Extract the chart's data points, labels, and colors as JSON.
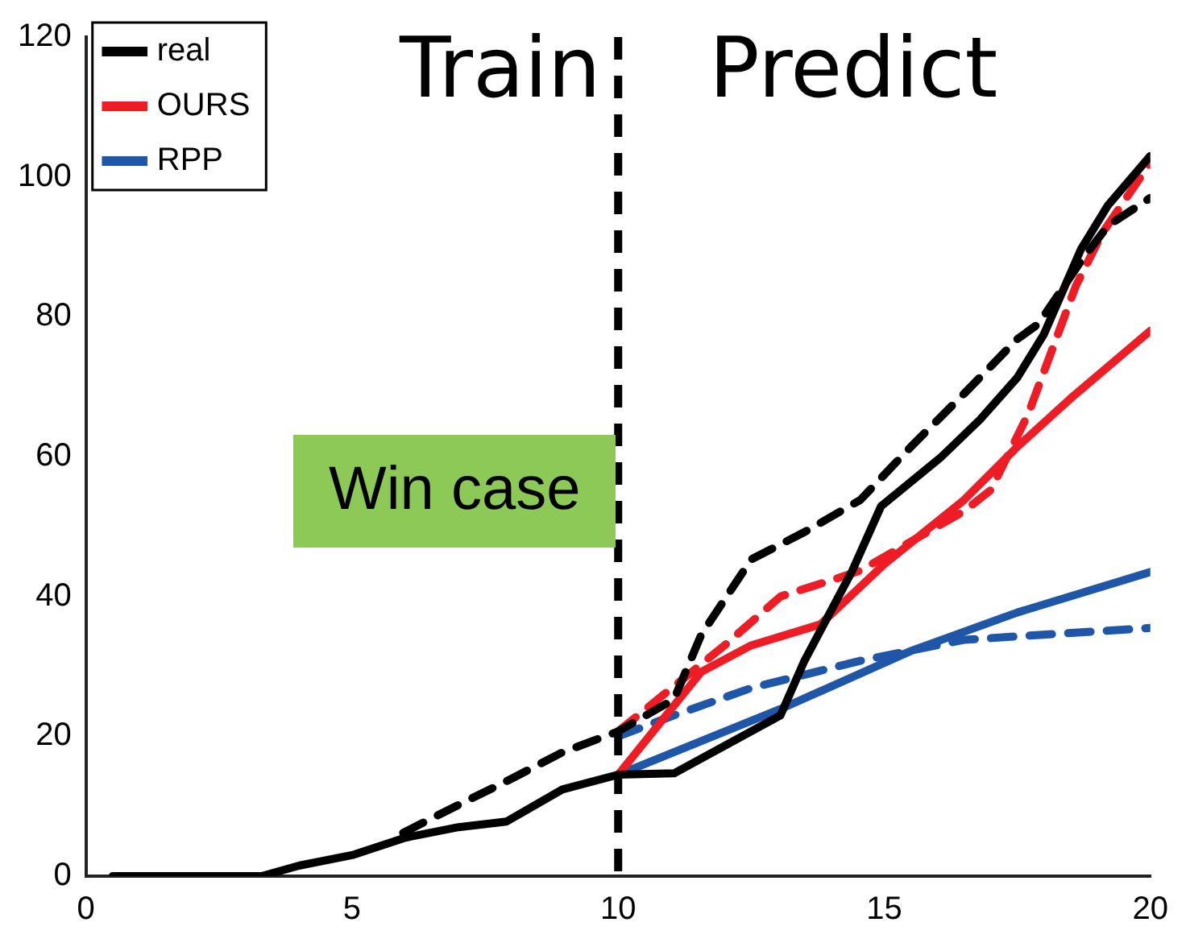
{
  "chart_data": {
    "type": "line",
    "xlim": [
      0,
      20
    ],
    "xticks": [
      0,
      5,
      10,
      15,
      20
    ],
    "ylim": [
      0,
      120
    ],
    "yticks": [
      0,
      20,
      40,
      60,
      80,
      100,
      120
    ],
    "grid": false,
    "legend": "top left",
    "marker": "none",
    "annotations": [
      "Train",
      "Predict",
      "Win case"
    ],
    "ref_lines": [
      {
        "axis": "x",
        "value": 10,
        "color": "#000000",
        "line_style": "dashed"
      }
    ],
    "series": [
      {
        "name": "real",
        "color": "#000000",
        "line_style": "solid",
        "x": [
          0.5,
          3.3,
          4,
          5,
          6,
          7,
          7.9,
          8.95,
          10,
          11.05,
          13.05,
          13.5,
          14.4,
          14.94,
          16.05,
          16.8,
          17.5,
          18,
          18.7,
          19.2,
          20
        ],
        "values": [
          0,
          0,
          1.5,
          3,
          5.5,
          7,
          7.8,
          12.4,
          14.5,
          14.7,
          23,
          30.8,
          43.7,
          52.9,
          59.8,
          65.3,
          71.3,
          77.5,
          89.7,
          95.9,
          103
        ]
      },
      {
        "color": "#000000",
        "line_style": "dashed",
        "x": [
          5.96,
          6.95,
          7.96,
          8.95,
          10,
          11.05,
          11.56,
          12.5,
          13.5,
          14.55,
          15.5,
          16.5,
          17.5,
          17.9,
          18.7,
          19.2,
          20
        ],
        "values": [
          6.2,
          10,
          13.8,
          17.7,
          20.7,
          25.3,
          34.5,
          45.3,
          49.2,
          53.8,
          61.4,
          69,
          76.8,
          79,
          88,
          93,
          97
        ]
      },
      {
        "name": "OURS",
        "color": "#ee1c25",
        "line_style": "solid",
        "x": [
          10,
          11.56,
          12.5,
          13.8,
          15,
          16.5,
          17.5,
          18.5,
          20
        ],
        "values": [
          14.5,
          29.2,
          33,
          36,
          44.6,
          53.8,
          61.4,
          68.3,
          78
        ]
      },
      {
        "color": "#ee1c25",
        "line_style": "dashed",
        "x": [
          10,
          12,
          13.05,
          14,
          14.55,
          16.5,
          17,
          17.7,
          18.6,
          19.1,
          20
        ],
        "values": [
          20.7,
          33,
          40,
          42.3,
          43.7,
          52.2,
          55.2,
          66,
          84.4,
          92,
          102
        ]
      },
      {
        "name": "RPP",
        "color": "#1f56a8",
        "line_style": "solid",
        "x": [
          10,
          13.05,
          15.5,
          17.5,
          20
        ],
        "values": [
          14.5,
          23.9,
          32.2,
          37.7,
          43.5
        ]
      },
      {
        "color": "#1f56a8",
        "line_style": "dashed",
        "x": [
          10,
          11.05,
          12.5,
          14.55,
          16.5,
          20
        ],
        "values": [
          20,
          23,
          26.9,
          30.8,
          33.8,
          35.5
        ]
      }
    ]
  }
}
